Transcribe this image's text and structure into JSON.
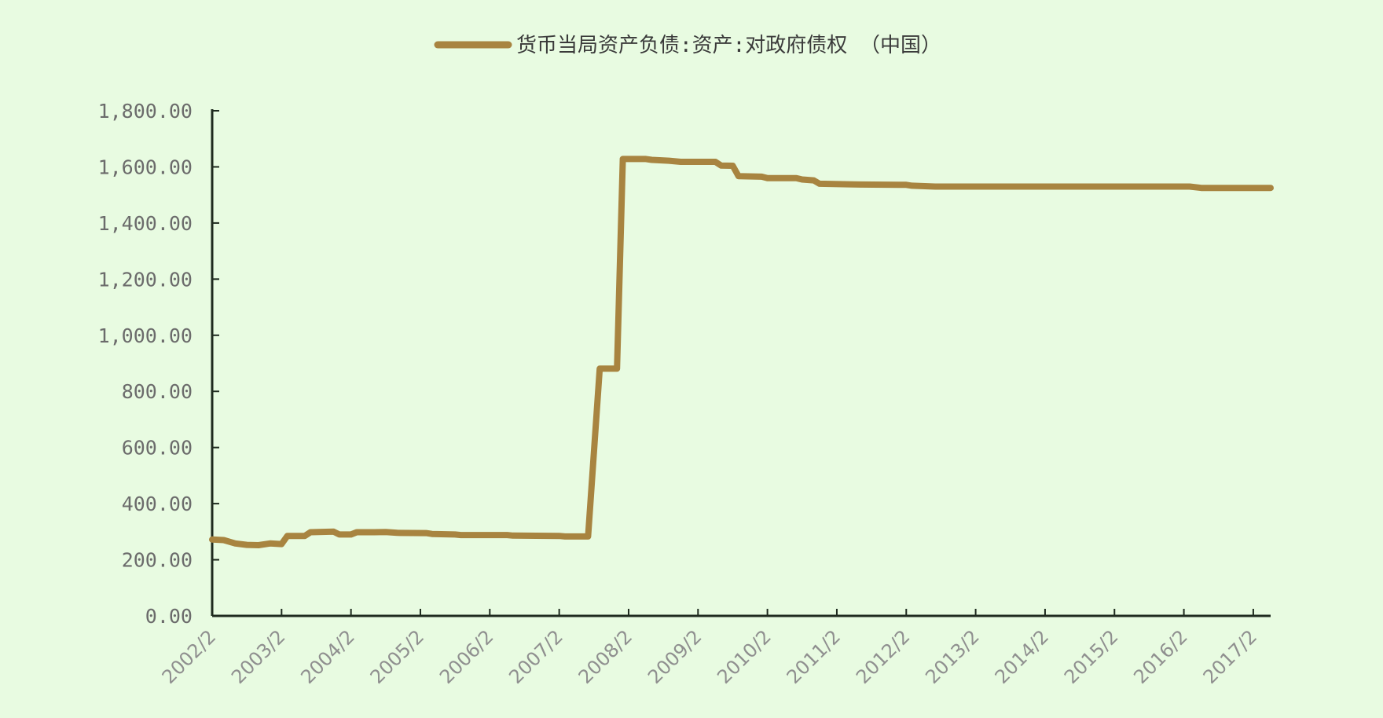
{
  "chart_data": {
    "type": "line",
    "title": "",
    "xlabel": "",
    "ylabel": "",
    "legend_position": "top-center",
    "grid": false,
    "ylim": [
      0,
      1800
    ],
    "y_ticks": [
      0,
      200,
      400,
      600,
      800,
      1000,
      1200,
      1400,
      1600,
      1800
    ],
    "y_tick_labels": [
      "0.00",
      "200.00",
      "400.00",
      "600.00",
      "800.00",
      "1,000.00",
      "1,200.00",
      "1,400.00",
      "1,600.00",
      "1,800.00"
    ],
    "x_tick_labels": [
      "2002/2",
      "2003/2",
      "2004/2",
      "2005/2",
      "2006/2",
      "2007/2",
      "2008/2",
      "2009/2",
      "2010/2",
      "2011/2",
      "2012/2",
      "2013/2",
      "2014/2",
      "2015/2",
      "2016/2",
      "2017/2"
    ],
    "x_range": [
      "2002-02",
      "2017-05"
    ],
    "colors": {
      "background": "#e8fbe1",
      "series": "#a88440",
      "axis": "#1e2a1e"
    },
    "series": [
      {
        "name": "货币当局资产负债:资产:对政府债权 （中国）",
        "points": [
          [
            "2002-02",
            272
          ],
          [
            "2002-04",
            270
          ],
          [
            "2002-06",
            258
          ],
          [
            "2002-08",
            253
          ],
          [
            "2002-10",
            252
          ],
          [
            "2002-12",
            258
          ],
          [
            "2003-02",
            256
          ],
          [
            "2003-03",
            285
          ],
          [
            "2003-06",
            285
          ],
          [
            "2003-07",
            298
          ],
          [
            "2003-11",
            300
          ],
          [
            "2003-12",
            290
          ],
          [
            "2004-02",
            290
          ],
          [
            "2004-03",
            298
          ],
          [
            "2004-06",
            298
          ],
          [
            "2004-08",
            299
          ],
          [
            "2004-10",
            296
          ],
          [
            "2005-03",
            295
          ],
          [
            "2005-04",
            292
          ],
          [
            "2005-08",
            290
          ],
          [
            "2005-09",
            288
          ],
          [
            "2006-05",
            288
          ],
          [
            "2006-06",
            286
          ],
          [
            "2007-02",
            285
          ],
          [
            "2007-03",
            283
          ],
          [
            "2007-07",
            283
          ],
          [
            "2007-09",
            881
          ],
          [
            "2007-12",
            881
          ],
          [
            "2008-01",
            1628
          ],
          [
            "2008-05",
            1628
          ],
          [
            "2008-06",
            1625
          ],
          [
            "2008-09",
            1622
          ],
          [
            "2008-11",
            1618
          ],
          [
            "2009-05",
            1618
          ],
          [
            "2009-06",
            1605
          ],
          [
            "2009-08",
            1604
          ],
          [
            "2009-09",
            1567
          ],
          [
            "2010-01",
            1565
          ],
          [
            "2010-02",
            1560
          ],
          [
            "2010-07",
            1560
          ],
          [
            "2010-08",
            1555
          ],
          [
            "2010-10",
            1552
          ],
          [
            "2010-11",
            1540
          ],
          [
            "2011-04",
            1538
          ],
          [
            "2011-06",
            1537
          ],
          [
            "2012-02",
            1536
          ],
          [
            "2012-03",
            1533
          ],
          [
            "2012-07",
            1530
          ],
          [
            "2016-03",
            1530
          ],
          [
            "2016-05",
            1525
          ],
          [
            "2017-05",
            1525
          ]
        ]
      }
    ]
  }
}
